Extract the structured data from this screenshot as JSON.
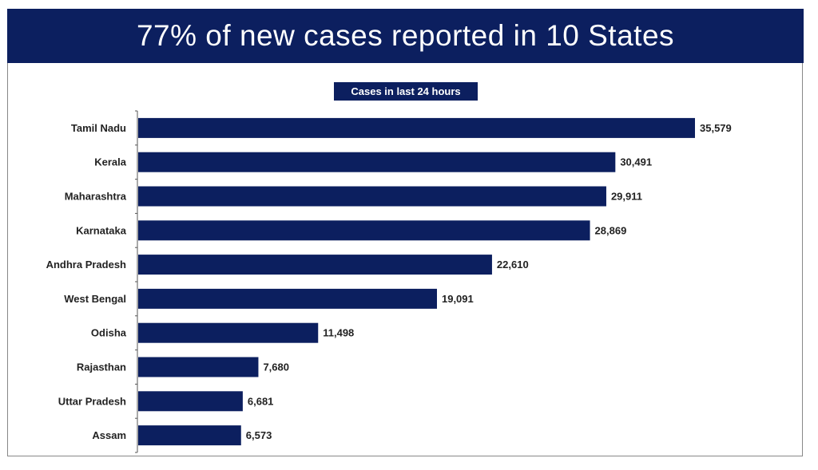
{
  "title": "77% of new cases reported in 10 States",
  "chart_data": {
    "type": "bar",
    "orientation": "horizontal",
    "title": "Cases in last 24 hours",
    "categories": [
      "Tamil Nadu",
      "Kerala",
      "Maharashtra",
      "Karnataka",
      "Andhra Pradesh",
      "West Bengal",
      "Odisha",
      "Rajasthan",
      "Uttar Pradesh",
      "Assam"
    ],
    "values": [
      35579,
      30491,
      29911,
      28869,
      22610,
      19091,
      11498,
      7680,
      6681,
      6573
    ],
    "value_labels": [
      "35,579",
      "30,491",
      "29,911",
      "28,869",
      "22,610",
      "19,091",
      "11,498",
      "7,680",
      "6,681",
      "6,573"
    ],
    "bar_color": "#0c1f5f",
    "grid": false,
    "legend": "none"
  }
}
